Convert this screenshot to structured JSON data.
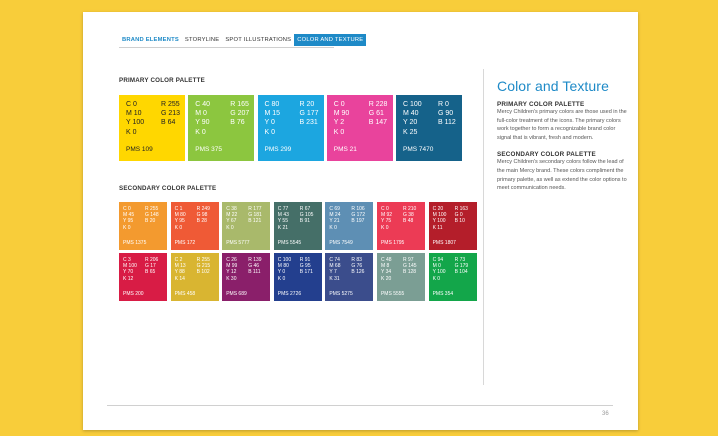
{
  "tabs": [
    {
      "label": "BRAND ELEMENTS"
    },
    {
      "label": "STORYLINE"
    },
    {
      "label": "SPOT ILLUSTRATIONS"
    },
    {
      "label": "COLOR AND TEXTURE"
    }
  ],
  "primary": {
    "title": "PRIMARY COLOR PALETTE",
    "swatches": [
      {
        "color": "#ffd700",
        "cmyk": [
          "C 0",
          "M 10",
          "Y 100",
          "K 0"
        ],
        "rgb": [
          "R 255",
          "G 213",
          "B 64"
        ],
        "pms": "PMS 109",
        "text": "#222222"
      },
      {
        "color": "#8cc63f",
        "cmyk": [
          "C 40",
          "M 0",
          "Y 90",
          "K 0"
        ],
        "rgb": [
          "R 165",
          "G 207",
          "B 76"
        ],
        "pms": "PMS 375",
        "text": "#ffffff"
      },
      {
        "color": "#1ca6e0",
        "cmyk": [
          "C 80",
          "M 15",
          "Y 0",
          "K 0"
        ],
        "rgb": [
          "R 20",
          "G 177",
          "B 231"
        ],
        "pms": "PMS 299",
        "text": "#ffffff"
      },
      {
        "color": "#e9439c",
        "cmyk": [
          "C 0",
          "M 90",
          "Y 2",
          "K 0"
        ],
        "rgb": [
          "R 228",
          "G 61",
          "B 147"
        ],
        "pms": "PMS 21",
        "text": "#ffffff"
      },
      {
        "color": "#15628a",
        "cmyk": [
          "C 100",
          "M 40",
          "Y 20",
          "K 25"
        ],
        "rgb": [
          "R 0",
          "G 90",
          "B 112"
        ],
        "pms": "PMS 7470",
        "text": "#ffffff"
      }
    ]
  },
  "secondary": {
    "title": "SECONDARY COLOR PALETTE",
    "rows": [
      [
        {
          "color": "#f39a2f",
          "cmyk": [
            "C 0",
            "M 45",
            "Y 95",
            "K 0"
          ],
          "rgb": [
            "R 255",
            "G 148",
            "B 20"
          ],
          "pms": "PMS 1375"
        },
        {
          "color": "#ef5a36",
          "cmyk": [
            "C 1",
            "M 80",
            "Y 95",
            "K 0"
          ],
          "rgb": [
            "R 249",
            "G 98",
            "B 28"
          ],
          "pms": "PMS 172"
        },
        {
          "color": "#a9b96b",
          "cmyk": [
            "C 38",
            "M 22",
            "Y 67",
            "K 0"
          ],
          "rgb": [
            "R 177",
            "G 181",
            "B 121"
          ],
          "pms": "PMS 5777"
        },
        {
          "color": "#456f68",
          "cmyk": [
            "C 77",
            "M 43",
            "Y 55",
            "K 21"
          ],
          "rgb": [
            "R 67",
            "G 105",
            "B 91"
          ],
          "pms": "PMS 5545"
        },
        {
          "color": "#5e8fb4",
          "cmyk": [
            "C 69",
            "M 24",
            "Y 21",
            "K 0"
          ],
          "rgb": [
            "R 106",
            "G 172",
            "B 197"
          ],
          "pms": "PMS 7549"
        },
        {
          "color": "#ec3b55",
          "cmyk": [
            "C 0",
            "M 92",
            "Y 75",
            "K 0"
          ],
          "rgb": [
            "R 210",
            "G 38",
            "B 48"
          ],
          "pms": "PMS 1795"
        },
        {
          "color": "#b41e2a",
          "cmyk": [
            "C 20",
            "M 100",
            "Y 100",
            "K 11"
          ],
          "rgb": [
            "R 163",
            "G 0",
            "B 10"
          ],
          "pms": "PMS 1807"
        }
      ],
      [
        {
          "color": "#d81c45",
          "cmyk": [
            "C 3",
            "M 100",
            "Y 70",
            "K 12"
          ],
          "rgb": [
            "R 206",
            "G 17",
            "B 65"
          ],
          "pms": "PMS 200"
        },
        {
          "color": "#d9b531",
          "cmyk": [
            "C 2",
            "M 13",
            "Y 88",
            "K 14"
          ],
          "rgb": [
            "R 255",
            "G 215",
            "B 102"
          ],
          "pms": "PMS 458"
        },
        {
          "color": "#8a1f6a",
          "cmyk": [
            "C 26",
            "M 99",
            "Y 12",
            "K 30"
          ],
          "rgb": [
            "R 139",
            "G 46",
            "B 111"
          ],
          "pms": "PMS 689"
        },
        {
          "color": "#233f8e",
          "cmyk": [
            "C 100",
            "M 80",
            "Y 0",
            "K 0"
          ],
          "rgb": [
            "R 91",
            "G 95",
            "B 171"
          ],
          "pms": "PMS 2726"
        },
        {
          "color": "#3b4d8c",
          "cmyk": [
            "C 74",
            "M 68",
            "Y 7",
            "K 31"
          ],
          "rgb": [
            "R 83",
            "G 76",
            "B 126"
          ],
          "pms": "PMS 5275"
        },
        {
          "color": "#7b9e94",
          "cmyk": [
            "C 48",
            "M 8",
            "Y 34",
            "K 20"
          ],
          "rgb": [
            "R 97",
            "G 145",
            "B 128"
          ],
          "pms": "PMS 5555"
        },
        {
          "color": "#13a64a",
          "cmyk": [
            "C 94",
            "M 0",
            "Y 100",
            "K 0"
          ],
          "rgb": [
            "R 73",
            "G 179",
            "B 104"
          ],
          "pms": "PMS 354"
        }
      ]
    ]
  },
  "sidebar": {
    "heading": "Color and Texture",
    "primary_title": "PRIMARY COLOR PALETTE",
    "primary_text": "Mercy Children's primary colors are those used in the full-color treatment of the icons. The primary colors work together to form a recognizable brand color signal that is vibrant, fresh and modern.",
    "secondary_title": "SECONDARY COLOR PALETTE",
    "secondary_text": "Mercy Children's secondary colors follow the lead of the main Mercy brand. These colors compliment the primary palette, as well as extend the color options to meet communication needs."
  },
  "page_number": "36"
}
